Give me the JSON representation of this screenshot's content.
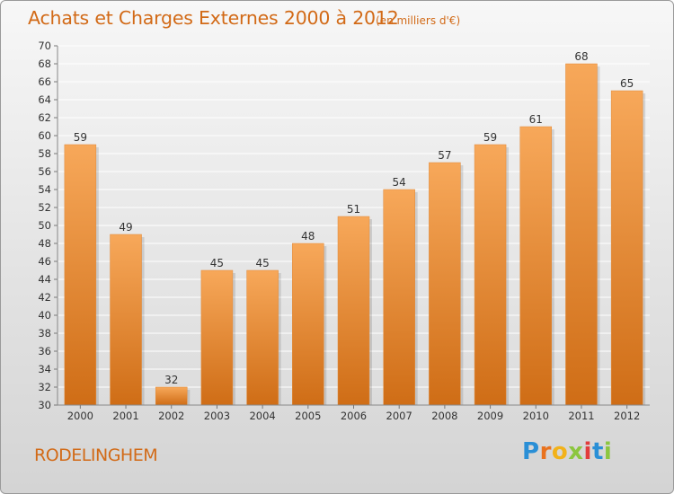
{
  "header": {
    "title": "Achats et Charges Externes 2000 à 2012",
    "unit": "(en milliers d'€)"
  },
  "footer": {
    "commune": "RODELINGHEM",
    "brand": "Proxiti"
  },
  "colors": {
    "bar_light": "#f7a85a",
    "bar_dark": "#d2721b",
    "title": "#d26a17",
    "text": "#333333",
    "grid": "#ffffff"
  },
  "chart_data": {
    "type": "bar",
    "title": "Achats et Charges Externes 2000 à 2012",
    "subtitle": "(en milliers d'€)",
    "categories": [
      "2000",
      "2001",
      "2002",
      "2003",
      "2004",
      "2005",
      "2006",
      "2007",
      "2008",
      "2009",
      "2010",
      "2011",
      "2012"
    ],
    "values": [
      59,
      49,
      32,
      45,
      45,
      48,
      51,
      54,
      57,
      59,
      61,
      68,
      65
    ],
    "xlabel": "",
    "ylabel": "",
    "ylim": [
      30,
      70
    ],
    "ytick_step": 2,
    "grid": true,
    "legend": "none"
  }
}
